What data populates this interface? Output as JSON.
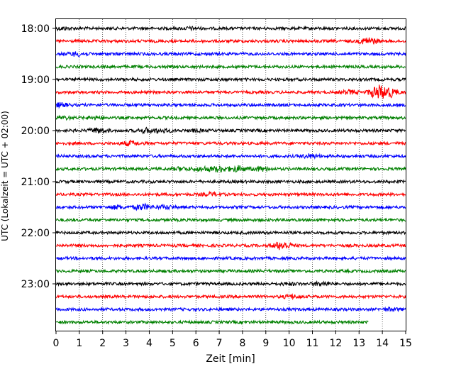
{
  "chart_data": {
    "type": "line",
    "title": "",
    "xlabel": "Zeit  [min]",
    "ylabel": "UTC (Lokalzeit = UTC + 02:00)",
    "xlim": [
      0,
      15
    ],
    "x_ticks": [
      "0",
      "1",
      "2",
      "3",
      "4",
      "5",
      "6",
      "7",
      "8",
      "9",
      "10",
      "11",
      "12",
      "13",
      "14",
      "15"
    ],
    "y_ticks": [
      "18:00",
      "19:00",
      "20:00",
      "21:00",
      "22:00",
      "23:00"
    ],
    "grid": "vertical dotted",
    "colors": [
      "#000000",
      "#ff0000",
      "#0000ff",
      "#008000"
    ],
    "trace_interval_min": 15,
    "traces": [
      {
        "start": "18:00",
        "color": "#000000",
        "events": [
          {
            "t": 0.3,
            "amp": 0.4
          },
          {
            "t": 5.8,
            "amp": 0.3
          }
        ]
      },
      {
        "start": "18:15",
        "color": "#ff0000",
        "events": [
          {
            "t": 13.4,
            "amp": 1.2
          }
        ]
      },
      {
        "start": "18:30",
        "color": "#0000ff",
        "events": [
          {
            "t": 0.9,
            "amp": 0.6
          }
        ]
      },
      {
        "start": "18:45",
        "color": "#008000",
        "events": []
      },
      {
        "start": "19:00",
        "color": "#000000",
        "events": []
      },
      {
        "start": "19:15",
        "color": "#ff0000",
        "events": [
          {
            "t": 12.6,
            "amp": 0.6
          },
          {
            "t": 13.8,
            "amp": 2.2
          },
          {
            "t": 14.3,
            "amp": 1.5
          }
        ]
      },
      {
        "start": "19:30",
        "color": "#0000ff",
        "events": [
          {
            "t": 0.2,
            "amp": 0.6
          }
        ]
      },
      {
        "start": "19:45",
        "color": "#008000",
        "events": [
          {
            "t": 0.3,
            "amp": 0.4
          },
          {
            "t": 1.7,
            "amp": 0.4
          }
        ]
      },
      {
        "start": "20:00",
        "color": "#000000",
        "events": [
          {
            "t": 1.8,
            "amp": 0.8
          },
          {
            "t": 3.9,
            "amp": 0.7
          },
          {
            "t": 4.6,
            "amp": 0.5
          },
          {
            "t": 6.0,
            "amp": 0.3
          }
        ]
      },
      {
        "start": "20:15",
        "color": "#ff0000",
        "events": [
          {
            "t": 3.2,
            "amp": 0.7
          }
        ]
      },
      {
        "start": "20:30",
        "color": "#0000ff",
        "events": [
          {
            "t": 10.9,
            "amp": 0.6
          }
        ]
      },
      {
        "start": "20:45",
        "color": "#008000",
        "events": [
          {
            "t": 5.4,
            "amp": 0.5
          },
          {
            "t": 6.3,
            "amp": 0.6
          },
          {
            "t": 7.0,
            "amp": 0.9
          },
          {
            "t": 7.8,
            "amp": 0.9
          },
          {
            "t": 8.8,
            "amp": 0.6
          }
        ]
      },
      {
        "start": "21:00",
        "color": "#000000",
        "events": []
      },
      {
        "start": "21:15",
        "color": "#ff0000",
        "events": [
          {
            "t": 6.7,
            "amp": 0.5
          }
        ]
      },
      {
        "start": "21:30",
        "color": "#0000ff",
        "events": [
          {
            "t": 2.6,
            "amp": 0.5
          },
          {
            "t": 3.7,
            "amp": 0.9
          },
          {
            "t": 4.7,
            "amp": 0.5
          }
        ]
      },
      {
        "start": "21:45",
        "color": "#008000",
        "events": []
      },
      {
        "start": "22:00",
        "color": "#000000",
        "events": []
      },
      {
        "start": "22:15",
        "color": "#ff0000",
        "events": [
          {
            "t": 9.7,
            "amp": 1.4
          }
        ]
      },
      {
        "start": "22:30",
        "color": "#0000ff",
        "events": []
      },
      {
        "start": "22:45",
        "color": "#008000",
        "events": []
      },
      {
        "start": "23:00",
        "color": "#000000",
        "events": [
          {
            "t": 10.0,
            "amp": 0.3
          },
          {
            "t": 11.4,
            "amp": 0.6
          }
        ]
      },
      {
        "start": "23:15",
        "color": "#ff0000",
        "events": [
          {
            "t": 10.1,
            "amp": 0.5
          }
        ]
      },
      {
        "start": "23:30",
        "color": "#0000ff",
        "events": [
          {
            "t": 14.4,
            "amp": 0.4
          }
        ]
      },
      {
        "start": "23:45",
        "color": "#008000",
        "end": 13.4,
        "events": []
      }
    ]
  }
}
